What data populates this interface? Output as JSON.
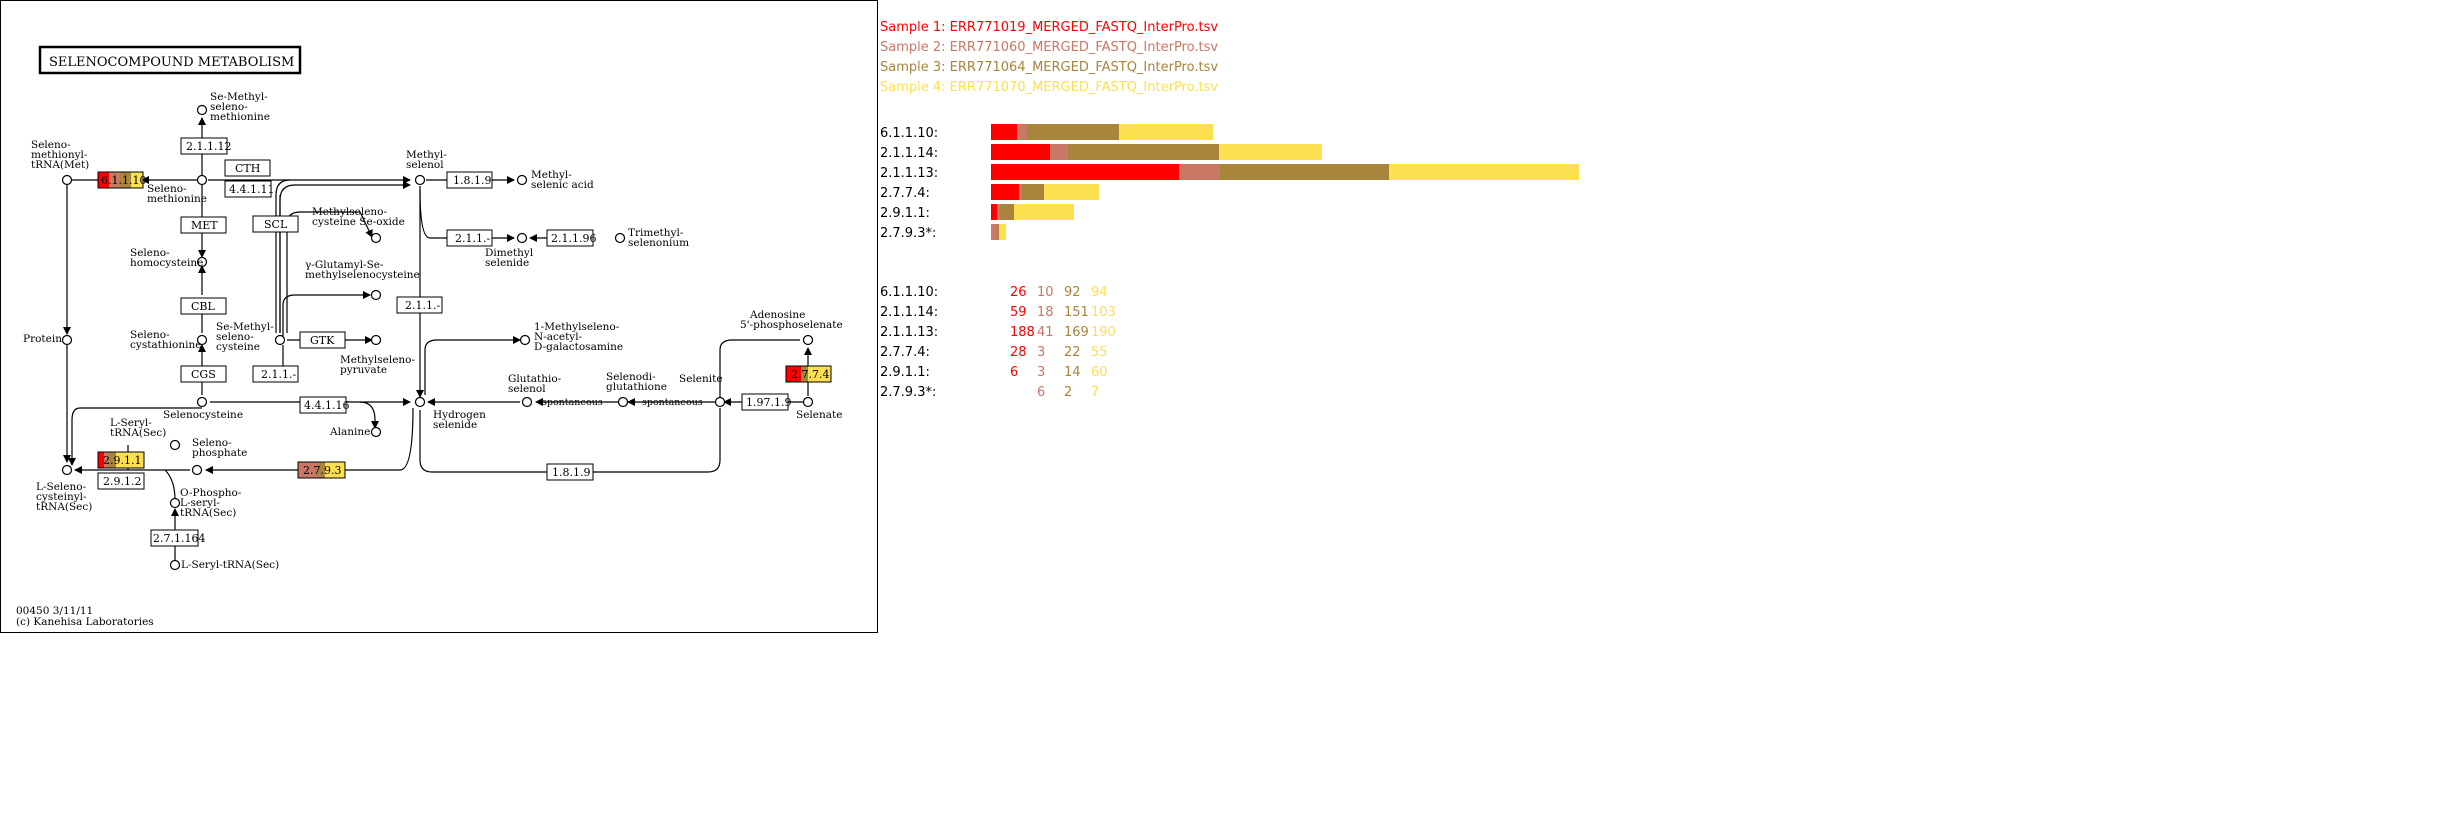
{
  "map": {
    "title": "SELENOCOMPOUND METABOLISM",
    "footer": [
      "00450 3/11/11",
      "(c) Kanehisa Laboratories"
    ]
  },
  "samples": [
    {
      "label": "Sample 1: ERR771019_MERGED_FASTQ_InterPro.tsv",
      "color": "#ff0000"
    },
    {
      "label": "Sample 2: ERR771060_MERGED_FASTQ_InterPro.tsv",
      "color": "#c87864"
    },
    {
      "label": "Sample 3: ERR771064_MERGED_FASTQ_InterPro.tsv",
      "color": "#a8843c"
    },
    {
      "label": "Sample 4: ERR771070_MERGED_FASTQ_InterPro.tsv",
      "color": "#fce050"
    }
  ],
  "chart_data": {
    "type": "bar",
    "stacked": true,
    "orientation": "horizontal",
    "categories": [
      "6.1.1.10:",
      "2.1.1.14:",
      "2.1.1.13:",
      "2.7.7.4:",
      "2.9.1.1:",
      "2.7.9.3*:"
    ],
    "series": [
      {
        "name": "Sample 1: ERR771019_MERGED_FASTQ_InterPro.tsv",
        "values": [
          26,
          59,
          188,
          28,
          6,
          0
        ]
      },
      {
        "name": "Sample 2: ERR771060_MERGED_FASTQ_InterPro.tsv",
        "values": [
          10,
          18,
          41,
          3,
          3,
          6
        ]
      },
      {
        "name": "Sample 3: ERR771064_MERGED_FASTQ_InterPro.tsv",
        "values": [
          92,
          151,
          169,
          22,
          14,
          2
        ]
      },
      {
        "name": "Sample 4: ERR771070_MERGED_FASTQ_InterPro.tsv",
        "values": [
          94,
          103,
          190,
          55,
          60,
          7
        ]
      }
    ],
    "count_rows": [
      [
        "26",
        "10",
        "92",
        "94"
      ],
      [
        "59",
        "18",
        "151",
        "103"
      ],
      [
        "188",
        "41",
        "169",
        "190"
      ],
      [
        "28",
        "3",
        "22",
        "55"
      ],
      [
        "6",
        "3",
        "14",
        "60"
      ],
      [
        "",
        "6",
        "2",
        "7"
      ]
    ]
  },
  "enzymes": {
    "e6_1_1_10": "6.1.1.10",
    "e2_1_1_12": "2.1.1.12",
    "e4_4_1_11": "4.4.1.11",
    "e1_8_1_9a": "1.8.1.9",
    "e2_1_1_a": "2.1.1.-",
    "e2_1_1_96": "2.1.1.96",
    "e2_1_1_b": "2.1.1.-",
    "e2_1_1_c": "2.1.1.-",
    "e4_4_1_16": "4.4.1.16",
    "e1_97_1_9": "1.97.1.9",
    "e2_7_7_4": "2.7.7.4",
    "e2_9_1_1": "2.9.1.1",
    "e2_9_1_2": "2.9.1.2",
    "e2_7_9_3": "2.7.9.3",
    "e1_8_1_9b": "1.8.1.9",
    "e2_7_1_164": "2.7.1.164",
    "cth": "CTH",
    "met": "MET",
    "scl": "SCL",
    "cbl": "CBL",
    "cgs": "CGS",
    "gtk": "GTK"
  },
  "compounds": {
    "se_methylselenomethionine": [
      "Se-Methyl-",
      "seleno-",
      "methionine"
    ],
    "selenomethionyl_trna": [
      "Seleno-",
      "methionyl-",
      "tRNA(Met)"
    ],
    "selenomethionine": [
      "Seleno-",
      "methionine"
    ],
    "methylselenol": [
      "Methyl-",
      "selenol"
    ],
    "methylselenic_acid": [
      "Methyl-",
      "selenic acid"
    ],
    "methylselenocysteine_se_oxide": [
      "Methylseleno-",
      "cysteine Se-oxide"
    ],
    "dimethyl_selenide": [
      "Dimethyl",
      "selenide"
    ],
    "trimethylselenonium": [
      "Trimethyl-",
      "selenonium"
    ],
    "selenohomocysteine": [
      "Seleno-",
      "homocysteine"
    ],
    "gamma_glutamyl": [
      "γ-Glutamyl-Se-",
      "methylselenocysteine"
    ],
    "protein": [
      "Protein"
    ],
    "selenocystathionine": [
      "Seleno-",
      "cystathionine"
    ],
    "se_methylselenocysteine": [
      "Se-Methyl-",
      "seleno-",
      "cysteine"
    ],
    "methylselenopyruvate": [
      "Methylseleno-",
      "pyruvate"
    ],
    "methylseleno_galactosamine": [
      "1-Methylseleno-",
      "N-acetyl-",
      "D-galactosamine"
    ],
    "adenosine_phosphoselenate": [
      "Adenosine",
      "5'-phosphoselenate"
    ],
    "selenocysteine": [
      "Selenocysteine"
    ],
    "alanine": [
      "Alanine"
    ],
    "hydrogen_selenide": [
      "Hydrogen",
      "selenide"
    ],
    "glutathioselenol": [
      "Glutathio-",
      "selenol"
    ],
    "selenodiglutathione": [
      "Selenodi-",
      "glutathione"
    ],
    "selenite": [
      "Selenite"
    ],
    "selenate": [
      "Selenate"
    ],
    "l_seryl_trna_top": [
      "L-Seryl-",
      "tRNA(Sec)"
    ],
    "selenophosphate": [
      "Seleno-",
      "phosphate"
    ],
    "l_selenocysteinyl_trna": [
      "L-Seleno-",
      "cysteinyl-",
      "tRNA(Sec)"
    ],
    "o_phospho_l_seryl_trna": [
      "O-Phospho-",
      "L-seryl-",
      "tRNA(Sec)"
    ],
    "l_seryl_trna_bottom": [
      "L-Seryl-tRNA(Sec)"
    ],
    "spontaneous": "spontaneous"
  }
}
